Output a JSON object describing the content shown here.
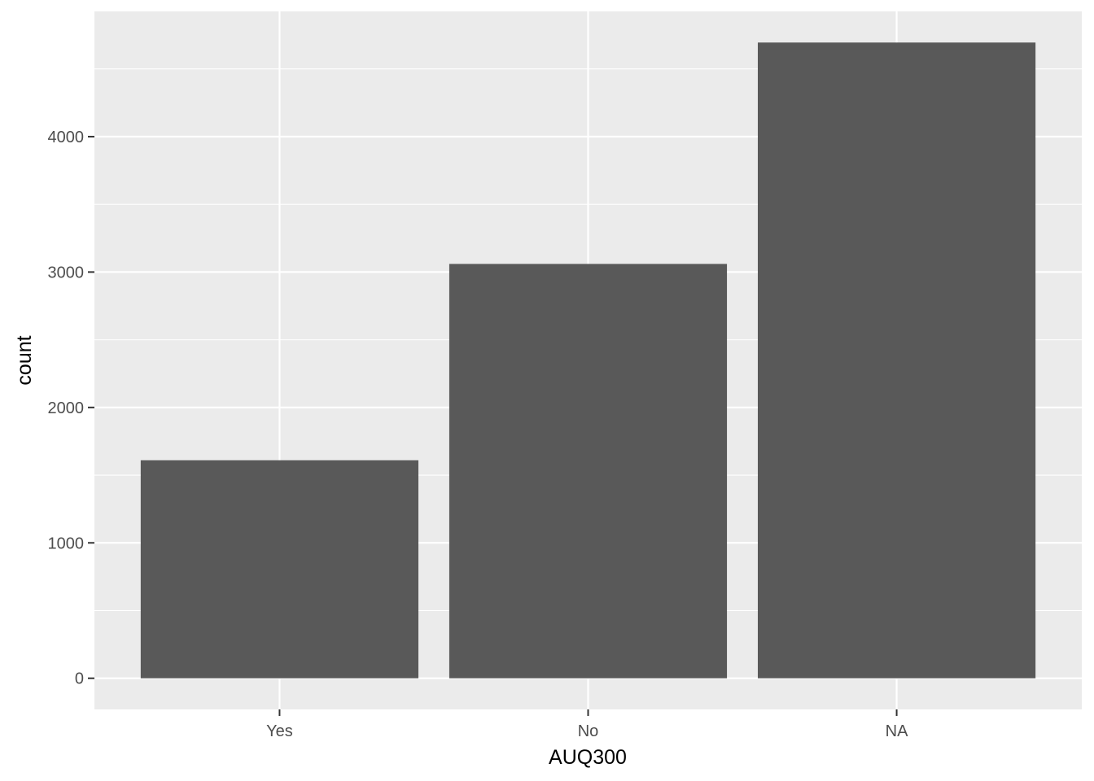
{
  "chart_data": {
    "type": "bar",
    "title": "",
    "xlabel": "AUQ300",
    "ylabel": "count",
    "categories": [
      "Yes",
      "No",
      "NA"
    ],
    "values": [
      1610,
      3060,
      4695
    ],
    "ylim": [
      -230,
      4925
    ],
    "yticks": [
      0,
      1000,
      2000,
      3000,
      4000
    ],
    "ytick_labels": [
      "0",
      "1000",
      "2000",
      "3000",
      "4000"
    ],
    "grid": true,
    "legend": "none",
    "colors": {
      "panel_background": "#ebebeb",
      "grid_major": "#ffffff",
      "bar_fill": "#595959",
      "tick_text": "#4d4d4d",
      "axis_title_text": "#000000"
    }
  }
}
